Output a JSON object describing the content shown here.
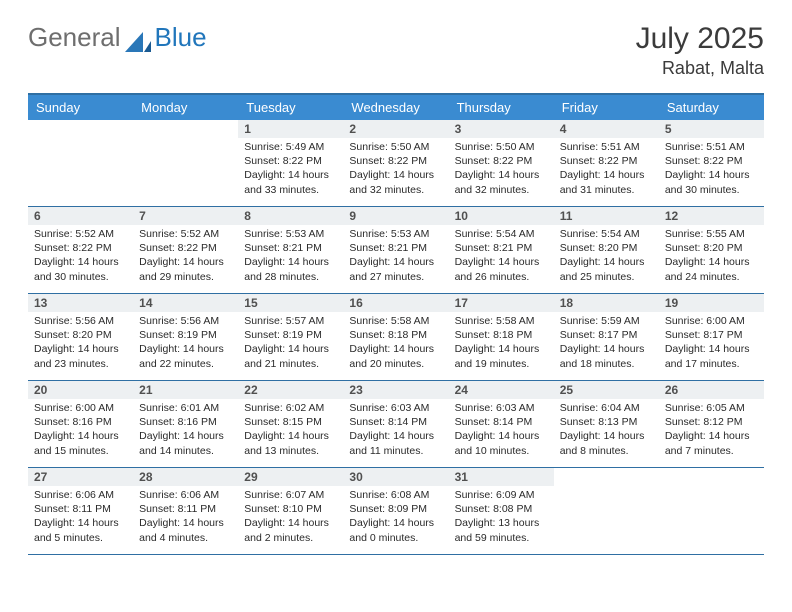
{
  "logo": {
    "general": "General",
    "blue": "Blue"
  },
  "title": "July 2025",
  "location": "Rabat, Malta",
  "colors": {
    "header_bg": "#3a8bd1",
    "rule": "#2f6fa3",
    "daybar": "#edf0f2",
    "text": "#2a2a2a",
    "logo_gray": "#6e6e6e",
    "logo_blue": "#2176bb"
  },
  "dow": [
    "Sunday",
    "Monday",
    "Tuesday",
    "Wednesday",
    "Thursday",
    "Friday",
    "Saturday"
  ],
  "weeks": [
    [
      {
        "empty": true
      },
      {
        "empty": true
      },
      {
        "n": "1",
        "sr": "5:49 AM",
        "ss": "8:22 PM",
        "dl": "14 hours and 33 minutes."
      },
      {
        "n": "2",
        "sr": "5:50 AM",
        "ss": "8:22 PM",
        "dl": "14 hours and 32 minutes."
      },
      {
        "n": "3",
        "sr": "5:50 AM",
        "ss": "8:22 PM",
        "dl": "14 hours and 32 minutes."
      },
      {
        "n": "4",
        "sr": "5:51 AM",
        "ss": "8:22 PM",
        "dl": "14 hours and 31 minutes."
      },
      {
        "n": "5",
        "sr": "5:51 AM",
        "ss": "8:22 PM",
        "dl": "14 hours and 30 minutes."
      }
    ],
    [
      {
        "n": "6",
        "sr": "5:52 AM",
        "ss": "8:22 PM",
        "dl": "14 hours and 30 minutes."
      },
      {
        "n": "7",
        "sr": "5:52 AM",
        "ss": "8:22 PM",
        "dl": "14 hours and 29 minutes."
      },
      {
        "n": "8",
        "sr": "5:53 AM",
        "ss": "8:21 PM",
        "dl": "14 hours and 28 minutes."
      },
      {
        "n": "9",
        "sr": "5:53 AM",
        "ss": "8:21 PM",
        "dl": "14 hours and 27 minutes."
      },
      {
        "n": "10",
        "sr": "5:54 AM",
        "ss": "8:21 PM",
        "dl": "14 hours and 26 minutes."
      },
      {
        "n": "11",
        "sr": "5:54 AM",
        "ss": "8:20 PM",
        "dl": "14 hours and 25 minutes."
      },
      {
        "n": "12",
        "sr": "5:55 AM",
        "ss": "8:20 PM",
        "dl": "14 hours and 24 minutes."
      }
    ],
    [
      {
        "n": "13",
        "sr": "5:56 AM",
        "ss": "8:20 PM",
        "dl": "14 hours and 23 minutes."
      },
      {
        "n": "14",
        "sr": "5:56 AM",
        "ss": "8:19 PM",
        "dl": "14 hours and 22 minutes."
      },
      {
        "n": "15",
        "sr": "5:57 AM",
        "ss": "8:19 PM",
        "dl": "14 hours and 21 minutes."
      },
      {
        "n": "16",
        "sr": "5:58 AM",
        "ss": "8:18 PM",
        "dl": "14 hours and 20 minutes."
      },
      {
        "n": "17",
        "sr": "5:58 AM",
        "ss": "8:18 PM",
        "dl": "14 hours and 19 minutes."
      },
      {
        "n": "18",
        "sr": "5:59 AM",
        "ss": "8:17 PM",
        "dl": "14 hours and 18 minutes."
      },
      {
        "n": "19",
        "sr": "6:00 AM",
        "ss": "8:17 PM",
        "dl": "14 hours and 17 minutes."
      }
    ],
    [
      {
        "n": "20",
        "sr": "6:00 AM",
        "ss": "8:16 PM",
        "dl": "14 hours and 15 minutes."
      },
      {
        "n": "21",
        "sr": "6:01 AM",
        "ss": "8:16 PM",
        "dl": "14 hours and 14 minutes."
      },
      {
        "n": "22",
        "sr": "6:02 AM",
        "ss": "8:15 PM",
        "dl": "14 hours and 13 minutes."
      },
      {
        "n": "23",
        "sr": "6:03 AM",
        "ss": "8:14 PM",
        "dl": "14 hours and 11 minutes."
      },
      {
        "n": "24",
        "sr": "6:03 AM",
        "ss": "8:14 PM",
        "dl": "14 hours and 10 minutes."
      },
      {
        "n": "25",
        "sr": "6:04 AM",
        "ss": "8:13 PM",
        "dl": "14 hours and 8 minutes."
      },
      {
        "n": "26",
        "sr": "6:05 AM",
        "ss": "8:12 PM",
        "dl": "14 hours and 7 minutes."
      }
    ],
    [
      {
        "n": "27",
        "sr": "6:06 AM",
        "ss": "8:11 PM",
        "dl": "14 hours and 5 minutes."
      },
      {
        "n": "28",
        "sr": "6:06 AM",
        "ss": "8:11 PM",
        "dl": "14 hours and 4 minutes."
      },
      {
        "n": "29",
        "sr": "6:07 AM",
        "ss": "8:10 PM",
        "dl": "14 hours and 2 minutes."
      },
      {
        "n": "30",
        "sr": "6:08 AM",
        "ss": "8:09 PM",
        "dl": "14 hours and 0 minutes."
      },
      {
        "n": "31",
        "sr": "6:09 AM",
        "ss": "8:08 PM",
        "dl": "13 hours and 59 minutes."
      },
      {
        "empty": true
      },
      {
        "empty": true
      }
    ]
  ],
  "labels": {
    "sunrise": "Sunrise:",
    "sunset": "Sunset:",
    "daylight": "Daylight:"
  }
}
